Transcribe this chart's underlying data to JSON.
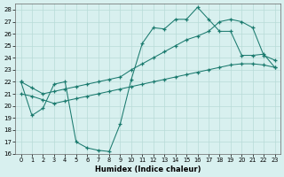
{
  "line1_x": [
    0,
    1,
    2,
    3,
    4,
    5,
    6,
    7,
    8,
    9,
    10,
    11,
    12,
    13,
    14,
    15,
    16,
    17,
    18,
    19,
    20,
    21,
    22,
    23
  ],
  "line1_y": [
    22.0,
    19.2,
    19.8,
    21.8,
    22.0,
    17.0,
    16.5,
    16.3,
    16.2,
    18.5,
    22.2,
    25.2,
    26.5,
    26.4,
    27.2,
    27.2,
    28.2,
    27.2,
    26.2,
    26.2,
    24.2,
    24.2,
    24.3,
    23.2
  ],
  "line2_x": [
    0,
    1,
    2,
    3,
    4,
    5,
    6,
    7,
    8,
    9,
    10,
    11,
    12,
    13,
    14,
    15,
    16,
    17,
    18,
    19,
    20,
    21,
    22,
    23
  ],
  "line2_y": [
    22.0,
    21.5,
    21.0,
    21.2,
    21.4,
    21.6,
    21.8,
    22.0,
    22.2,
    22.4,
    23.0,
    23.5,
    24.0,
    24.5,
    25.0,
    25.5,
    25.8,
    26.2,
    27.0,
    27.2,
    27.0,
    26.5,
    24.2,
    23.8
  ],
  "line3_x": [
    0,
    1,
    2,
    3,
    4,
    5,
    6,
    7,
    8,
    9,
    10,
    11,
    12,
    13,
    14,
    15,
    16,
    17,
    18,
    19,
    20,
    21,
    22,
    23
  ],
  "line3_y": [
    21.0,
    20.8,
    20.5,
    20.2,
    20.4,
    20.6,
    20.8,
    21.0,
    21.2,
    21.4,
    21.6,
    21.8,
    22.0,
    22.2,
    22.4,
    22.6,
    22.8,
    23.0,
    23.2,
    23.4,
    23.5,
    23.5,
    23.4,
    23.2
  ],
  "color": "#1a7a6e",
  "bg_color": "#d8f0ef",
  "grid_color": "#b8dbd8",
  "xlabel": "Humidex (Indice chaleur)",
  "xlim": [
    -0.5,
    23.5
  ],
  "ylim": [
    16,
    28.5
  ],
  "xticks": [
    0,
    1,
    2,
    3,
    4,
    5,
    6,
    7,
    8,
    9,
    10,
    11,
    12,
    13,
    14,
    15,
    16,
    17,
    18,
    19,
    20,
    21,
    22,
    23
  ],
  "yticks": [
    16,
    17,
    18,
    19,
    20,
    21,
    22,
    23,
    24,
    25,
    26,
    27,
    28
  ]
}
